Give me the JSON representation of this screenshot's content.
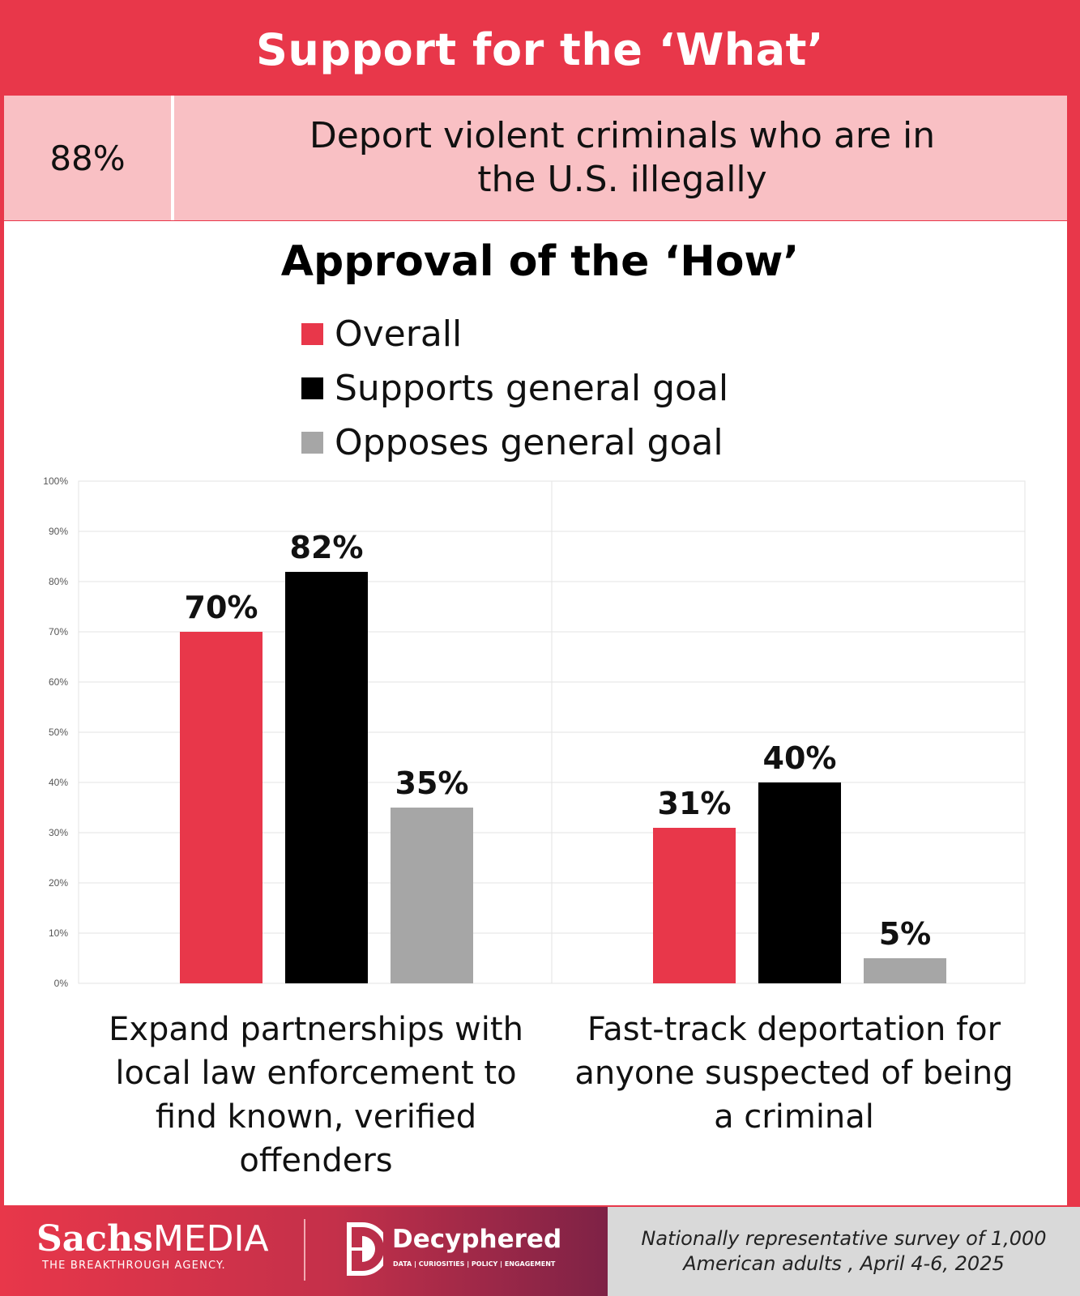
{
  "header": {
    "title": "Support for the ‘What’"
  },
  "what_row": {
    "percent": "88%",
    "text": "Deport violent criminals who are in the U.S. illegally"
  },
  "colors": {
    "overall": "#e8374a",
    "supports": "#000000",
    "opposes": "#a6a6a6",
    "accent": "#e8374a"
  },
  "chart_data": {
    "type": "bar",
    "title": "Approval of the ‘How’",
    "categories": [
      "Expand partnerships with local law enforcement to find known, verified offenders",
      "Fast-track deportation for anyone suspected of being a criminal"
    ],
    "series": [
      {
        "name": "Overall",
        "values": [
          70,
          31
        ],
        "labels": [
          "70%",
          "31%"
        ]
      },
      {
        "name": "Supports general goal",
        "values": [
          82,
          40
        ],
        "labels": [
          "82%",
          "40%"
        ]
      },
      {
        "name": "Opposes general goal",
        "values": [
          35,
          5
        ],
        "labels": [
          "35%",
          "5%"
        ]
      }
    ],
    "ylim": [
      0,
      100
    ],
    "yticks": [
      "0%",
      "10%",
      "20%",
      "30%",
      "40%",
      "50%",
      "60%",
      "70%",
      "80%",
      "90%",
      "100%"
    ],
    "xlabel": "",
    "ylabel": "",
    "grid": true,
    "legend": "top-center"
  },
  "footer": {
    "sachs_name_bold": "Sachs",
    "sachs_name_rest": "MEDIA",
    "sachs_tagline": "THE BREAKTHROUGH AGENCY.",
    "decyphered_name": "Decyphered",
    "decyphered_tagline": "DATA | CURIOSITIES | POLICY | ENGAGEMENT",
    "note": "Nationally representative survey of 1,000 American adults , April 4-6, 2025"
  }
}
